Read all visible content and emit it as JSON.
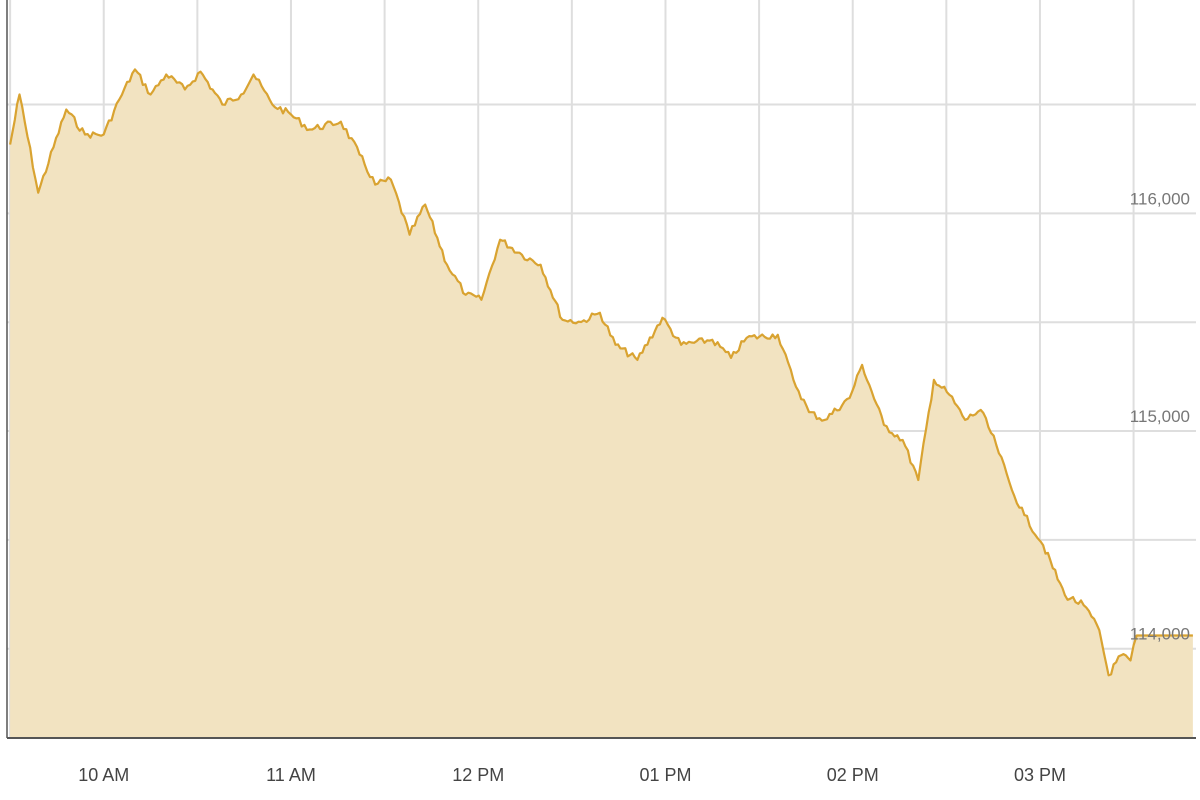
{
  "chart_data": {
    "type": "area",
    "title": "",
    "xlabel": "",
    "ylabel": "",
    "xlim": [
      "09:29",
      "15:50"
    ],
    "ylim": [
      113590,
      116980
    ],
    "grid": true,
    "x_ticks": [
      {
        "time": "10:00",
        "label": "10 AM"
      },
      {
        "time": "11:00",
        "label": "11 AM"
      },
      {
        "time": "12:00",
        "label": "12 PM"
      },
      {
        "time": "13:00",
        "label": "01 PM"
      },
      {
        "time": "14:00",
        "label": "02 PM"
      },
      {
        "time": "15:00",
        "label": "03 PM"
      }
    ],
    "x_gridlines_every_minutes": 30,
    "y_ticks": [
      {
        "value": 116000,
        "label": "116,000"
      },
      {
        "value": 115000,
        "label": "115,000"
      },
      {
        "value": 114000,
        "label": "114,000"
      }
    ],
    "y_gridlines": [
      114000,
      114500,
      115000,
      115500,
      116000,
      116500
    ],
    "colors": {
      "line": "#d9a331",
      "fill": "#f2e3c1",
      "grid": "#dedede",
      "axis": "#555555"
    },
    "series": [
      {
        "points": [
          [
            "09:30",
            116316
          ],
          [
            "09:33",
            116546
          ],
          [
            "09:39",
            116095
          ],
          [
            "09:48",
            116477
          ],
          [
            "09:54",
            116362
          ],
          [
            "10:00",
            116362
          ],
          [
            "10:05",
            116523
          ],
          [
            "10:10",
            116661
          ],
          [
            "10:15",
            116546
          ],
          [
            "10:20",
            116638
          ],
          [
            "10:26",
            116569
          ],
          [
            "10:31",
            116651
          ],
          [
            "10:38",
            116500
          ],
          [
            "10:44",
            116546
          ],
          [
            "10:48",
            116638
          ],
          [
            "10:54",
            116500
          ],
          [
            "11:00",
            116454
          ],
          [
            "11:06",
            116385
          ],
          [
            "11:16",
            116421
          ],
          [
            "11:22",
            116270
          ],
          [
            "11:27",
            116132
          ],
          [
            "11:32",
            116155
          ],
          [
            "11:38",
            115902
          ],
          [
            "11:43",
            116040
          ],
          [
            "11:50",
            115764
          ],
          [
            "11:56",
            115626
          ],
          [
            "12:01",
            115603
          ],
          [
            "12:07",
            115879
          ],
          [
            "12:14",
            115810
          ],
          [
            "12:20",
            115764
          ],
          [
            "12:27",
            115511
          ],
          [
            "12:33",
            115501
          ],
          [
            "12:39",
            115543
          ],
          [
            "12:44",
            115396
          ],
          [
            "12:51",
            115327
          ],
          [
            "12:59",
            115520
          ],
          [
            "13:05",
            115396
          ],
          [
            "13:15",
            115419
          ],
          [
            "13:21",
            115336
          ],
          [
            "13:26",
            115428
          ],
          [
            "13:36",
            115442
          ],
          [
            "13:41",
            115235
          ],
          [
            "13:46",
            115087
          ],
          [
            "13:51",
            115051
          ],
          [
            "13:59",
            115152
          ],
          [
            "14:03",
            115304
          ],
          [
            "14:10",
            115028
          ],
          [
            "14:16",
            114959
          ],
          [
            "14:21",
            114775
          ],
          [
            "14:26",
            115235
          ],
          [
            "14:31",
            115166
          ],
          [
            "14:36",
            115051
          ],
          [
            "14:41",
            115097
          ],
          [
            "14:46",
            114936
          ],
          [
            "14:51",
            114729
          ],
          [
            "14:55",
            114614
          ],
          [
            "15:01",
            114476
          ],
          [
            "15:08",
            114246
          ],
          [
            "15:14",
            114200
          ],
          [
            "15:19",
            114085
          ],
          [
            "15:22",
            113878
          ],
          [
            "15:26",
            113970
          ],
          [
            "15:29",
            113946
          ],
          [
            "15:31",
            114061
          ],
          [
            "15:49",
            114061
          ]
        ]
      }
    ]
  }
}
